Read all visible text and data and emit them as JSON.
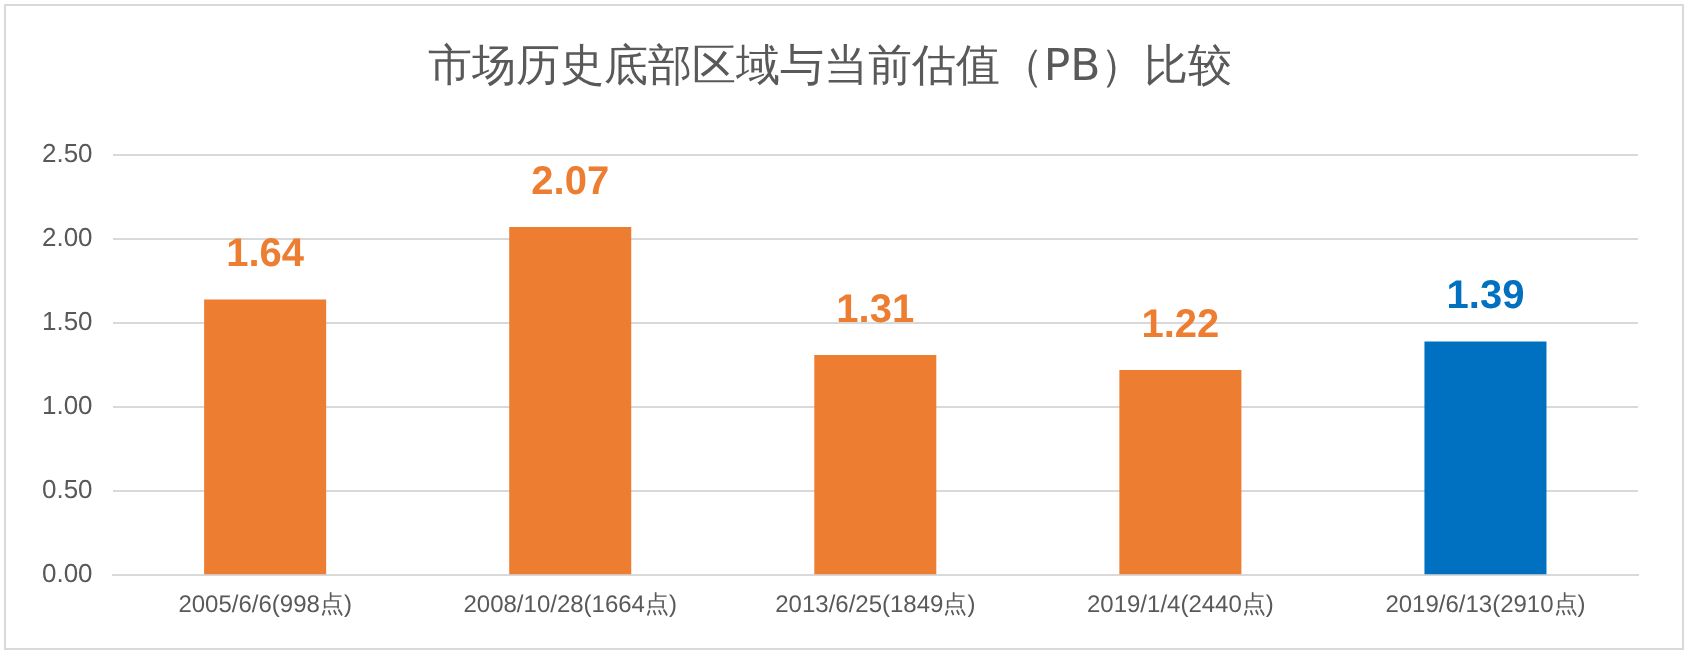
{
  "chart_data": {
    "type": "bar",
    "title": "市场历史底部区域与当前估值（PB）比较",
    "categories": [
      "2005/6/6(998点)",
      "2008/10/28(1664点)",
      "2013/6/25(1849点)",
      "2019/1/4(2440点)",
      "2019/6/13(2910点)"
    ],
    "values": [
      1.64,
      2.07,
      1.31,
      1.22,
      1.39
    ],
    "colors": [
      "#ed7d31",
      "#ed7d31",
      "#ed7d31",
      "#ed7d31",
      "#0070c0"
    ],
    "ylim": [
      0,
      2.5
    ],
    "yticks": [
      {
        "value": 0,
        "label": "0.00"
      },
      {
        "value": 0.5,
        "label": "0.50"
      },
      {
        "value": 1,
        "label": "1.00"
      },
      {
        "value": 1.5,
        "label": "1.50"
      },
      {
        "value": 2,
        "label": "2.00"
      },
      {
        "value": 2.5,
        "label": "2.50"
      }
    ],
    "grid": "y",
    "data_labels": true
  }
}
